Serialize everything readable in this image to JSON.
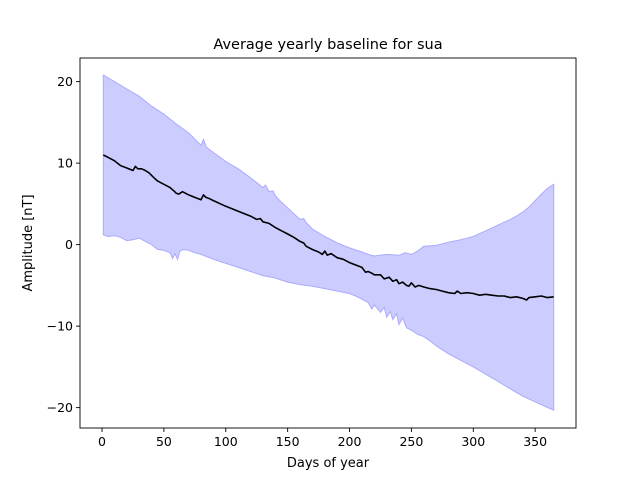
{
  "chart_data": {
    "type": "area",
    "title": "Average yearly baseline for sua",
    "xlabel": "Days of year",
    "ylabel": "Amplitude [nT]",
    "xlim": [
      -17.8,
      383
    ],
    "ylim": [
      -22.5,
      22.9
    ],
    "xticks": [
      0,
      50,
      100,
      150,
      200,
      250,
      300,
      350
    ],
    "yticks": [
      -20,
      -10,
      0,
      10,
      20
    ],
    "grid": false,
    "colors": {
      "band_fill": "#ccccff",
      "band_edge": "#aaaaff",
      "line": "#000000"
    },
    "series": [
      {
        "role": "mean-line",
        "x": [
          1,
          5,
          10,
          15,
          20,
          25,
          27,
          29,
          32,
          35,
          38,
          42,
          45,
          50,
          55,
          58,
          60,
          62,
          65,
          70,
          75,
          80,
          82,
          84,
          86,
          90,
          100,
          110,
          120,
          125,
          128,
          130,
          135,
          140,
          145,
          150,
          155,
          160,
          163,
          165,
          170,
          175,
          178,
          180,
          182,
          185,
          190,
          195,
          200,
          205,
          210,
          213,
          215,
          218,
          220,
          225,
          228,
          232,
          235,
          238,
          240,
          243,
          246,
          248,
          250,
          253,
          256,
          260,
          265,
          270,
          275,
          280,
          285,
          287,
          290,
          295,
          300,
          305,
          310,
          315,
          320,
          325,
          330,
          335,
          340,
          343,
          345,
          350,
          355,
          360,
          365
        ],
        "y": [
          11,
          10.7,
          10.3,
          9.7,
          9.4,
          9.1,
          9.6,
          9.3,
          9.3,
          9.1,
          8.8,
          8.2,
          7.8,
          7.4,
          7.0,
          6.6,
          6.3,
          6.2,
          6.5,
          6.1,
          5.8,
          5.5,
          6.1,
          5.8,
          5.7,
          5.4,
          4.7,
          4.1,
          3.5,
          3.1,
          3.2,
          2.8,
          2.6,
          2.1,
          1.7,
          1.3,
          0.9,
          0.4,
          0.2,
          -0.2,
          -0.6,
          -0.9,
          -1.2,
          -0.8,
          -1.3,
          -1.1,
          -1.6,
          -1.8,
          -2.2,
          -2.5,
          -2.8,
          -3.4,
          -3.3,
          -3.5,
          -3.7,
          -3.7,
          -4.2,
          -4.0,
          -4.5,
          -4.3,
          -4.8,
          -4.6,
          -5.0,
          -5.1,
          -4.7,
          -5.2,
          -5.0,
          -5.2,
          -5.4,
          -5.5,
          -5.7,
          -5.9,
          -6.0,
          -5.7,
          -6.0,
          -5.9,
          -6.0,
          -6.2,
          -6.1,
          -6.2,
          -6.3,
          -6.3,
          -6.5,
          -6.4,
          -6.6,
          -6.8,
          -6.5,
          -6.4,
          -6.3,
          -6.5,
          -6.4
        ]
      },
      {
        "role": "upper-bound",
        "x": [
          1,
          10,
          20,
          30,
          40,
          50,
          60,
          70,
          80,
          82,
          84,
          90,
          100,
          110,
          120,
          130,
          132,
          135,
          138,
          140,
          145,
          150,
          155,
          160,
          163,
          165,
          170,
          180,
          190,
          200,
          210,
          215,
          220,
          230,
          240,
          245,
          250,
          255,
          260,
          270,
          280,
          290,
          300,
          310,
          320,
          330,
          335,
          340,
          345,
          350,
          355,
          360,
          365
        ],
        "y": [
          20.8,
          20.0,
          19.1,
          18.2,
          17.0,
          16.0,
          14.8,
          13.7,
          12.2,
          12.9,
          12.0,
          11.3,
          10.2,
          9.3,
          8.2,
          7.0,
          7.3,
          6.5,
          6.6,
          6.0,
          5.2,
          4.5,
          3.8,
          3.1,
          3.2,
          2.7,
          1.9,
          1.0,
          0.2,
          -0.4,
          -0.9,
          -1.2,
          -1.4,
          -1.2,
          -1.3,
          -1.0,
          -1.2,
          -0.8,
          -0.2,
          -0.1,
          0.3,
          0.6,
          1.0,
          1.7,
          2.4,
          3.1,
          3.5,
          4.0,
          4.6,
          5.4,
          6.2,
          6.9,
          7.4
        ]
      },
      {
        "role": "lower-bound",
        "x": [
          1,
          5,
          10,
          15,
          20,
          25,
          30,
          35,
          40,
          45,
          50,
          55,
          57,
          59,
          61,
          63,
          65,
          70,
          75,
          80,
          90,
          100,
          110,
          120,
          130,
          140,
          150,
          160,
          170,
          180,
          190,
          200,
          205,
          210,
          215,
          218,
          220,
          225,
          228,
          230,
          233,
          235,
          238,
          240,
          243,
          246,
          250,
          255,
          260,
          265,
          270,
          275,
          280,
          290,
          300,
          310,
          320,
          330,
          340,
          350,
          360,
          365
        ],
        "y": [
          1.2,
          1.0,
          1.1,
          0.9,
          0.5,
          0.6,
          0.8,
          0.4,
          0.0,
          -0.6,
          -0.7,
          -1.0,
          -1.7,
          -1.1,
          -1.8,
          -0.8,
          -0.6,
          -0.7,
          -1.0,
          -1.2,
          -1.8,
          -2.3,
          -2.8,
          -3.3,
          -3.8,
          -4.1,
          -4.6,
          -4.9,
          -5.1,
          -5.4,
          -5.7,
          -6.0,
          -6.3,
          -6.7,
          -7.1,
          -7.9,
          -7.4,
          -8.3,
          -7.7,
          -8.9,
          -8.2,
          -9.2,
          -8.5,
          -9.8,
          -9.0,
          -10.2,
          -10.5,
          -11.0,
          -11.3,
          -11.8,
          -12.4,
          -12.9,
          -13.4,
          -14.2,
          -15.0,
          -15.9,
          -16.8,
          -17.7,
          -18.6,
          -19.3,
          -20.0,
          -20.3
        ]
      }
    ]
  }
}
